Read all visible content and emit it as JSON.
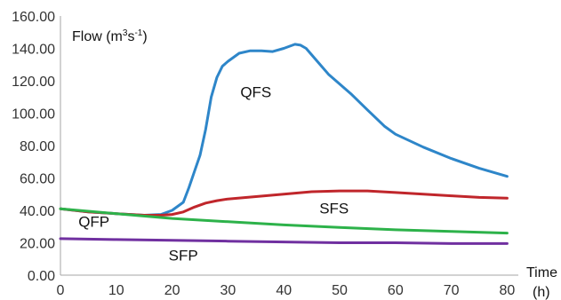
{
  "chart_data": {
    "type": "line",
    "xlabel": "Time",
    "xlabel_unit": "(h)",
    "ylabel": {
      "prefix": "Flow (m",
      "sup1": "3",
      "mid": "s",
      "sup2": "-1",
      "suffix": ")"
    },
    "xlim": [
      0,
      82
    ],
    "ylim": [
      0,
      160
    ],
    "x_ticks": [
      0,
      10,
      20,
      30,
      40,
      50,
      60,
      70,
      80
    ],
    "x_tick_labels": [
      "0",
      "10",
      "20",
      "30",
      "40",
      "50",
      "60",
      "70",
      "80"
    ],
    "y_ticks": [
      0,
      20,
      40,
      60,
      80,
      100,
      120,
      140,
      160
    ],
    "y_tick_labels": [
      "0.00",
      "20.00",
      "40.00",
      "60.00",
      "80.00",
      "100.00",
      "120.00",
      "140.00",
      "160.00"
    ],
    "grid": false,
    "series": [
      {
        "name": "QFS",
        "color": "#2e86c9",
        "x": [
          0,
          5,
          10,
          15,
          18,
          20,
          22,
          23,
          24,
          25,
          26,
          27,
          28,
          29,
          30,
          32,
          34,
          36,
          38,
          40,
          42,
          43,
          44,
          46,
          48,
          50,
          52,
          55,
          58,
          60,
          65,
          70,
          75,
          80
        ],
        "y": [
          41,
          39,
          38,
          37,
          37.5,
          40,
          45,
          54,
          64,
          74,
          90,
          110,
          122,
          129,
          132,
          137,
          138.5,
          138.5,
          138,
          140,
          142.5,
          142,
          140,
          132,
          124,
          118,
          112,
          102,
          92,
          87,
          79,
          72,
          66,
          61
        ]
      },
      {
        "name": "SFS",
        "color": "#c0262b",
        "x": [
          0,
          5,
          10,
          15,
          18,
          20,
          22,
          24,
          26,
          28,
          30,
          35,
          40,
          45,
          50,
          55,
          60,
          65,
          70,
          75,
          80
        ],
        "y": [
          41,
          39,
          38,
          37,
          37,
          37.5,
          39,
          42,
          44.5,
          46,
          47,
          48.5,
          50,
          51.5,
          52,
          52,
          51,
          50,
          49,
          48,
          47.5
        ]
      },
      {
        "name": "QFP",
        "color": "#2db24a",
        "x": [
          0,
          10,
          20,
          30,
          40,
          50,
          60,
          70,
          80
        ],
        "y": [
          41,
          38,
          35,
          33,
          31,
          29.5,
          28,
          27,
          26
        ]
      },
      {
        "name": "SFP",
        "color": "#7030a0",
        "x": [
          0,
          10,
          20,
          30,
          40,
          50,
          60,
          70,
          80
        ],
        "y": [
          22.5,
          22,
          21.5,
          21,
          20.5,
          20,
          20,
          19.5,
          19.5
        ]
      }
    ],
    "series_labels": [
      {
        "name": "QFS",
        "x": 35,
        "y": 110
      },
      {
        "name": "SFS",
        "x": 49,
        "y": 38
      },
      {
        "name": "QFP",
        "x": 6,
        "y": 30
      },
      {
        "name": "SFP",
        "x": 22,
        "y": 9
      }
    ]
  }
}
